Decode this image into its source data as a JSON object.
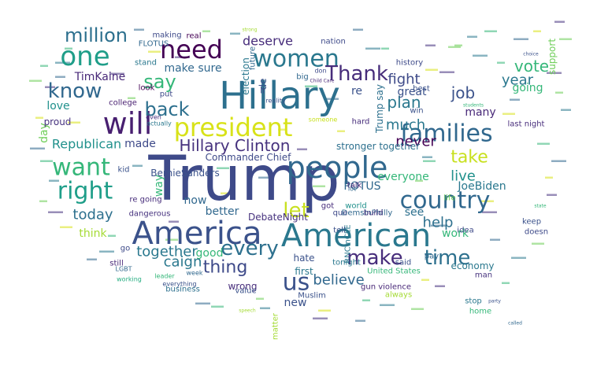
{
  "palette": {
    "dark_purple": "#46327e",
    "indigo": "#443983",
    "blue": "#365c8d",
    "steel_blue": "#31688e",
    "teal_blue": "#277f8e",
    "teal": "#1f9e89",
    "green_teal": "#26ad81",
    "green": "#35b779",
    "light_green": "#6ece58",
    "yellow_green": "#a5db36",
    "yellow": "#d8e219",
    "bright_yellow": "#fde725"
  },
  "words": [
    {
      "text": "Trump",
      "color": "#3e4a89"
    },
    {
      "text": "Hillary",
      "color": "#2d708e"
    },
    {
      "text": "America",
      "color": "#3b528b"
    },
    {
      "text": "American",
      "color": "#2a788e"
    },
    {
      "text": "people",
      "color": "#31688e"
    },
    {
      "text": "president",
      "color": "#d8e219"
    },
    {
      "text": "will",
      "color": "#481f70"
    },
    {
      "text": "need",
      "color": "#440154"
    },
    {
      "text": "one",
      "color": "#1f9e89"
    },
    {
      "text": "women",
      "color": "#2a788e"
    },
    {
      "text": "families",
      "color": "#31688e"
    },
    {
      "text": "country",
      "color": "#31688e"
    },
    {
      "text": "want",
      "color": "#35b779"
    },
    {
      "text": "right",
      "color": "#1f9e89"
    },
    {
      "text": "make",
      "color": "#472d7b"
    },
    {
      "text": "time",
      "color": "#2d708e"
    },
    {
      "text": "us",
      "color": "#3b528b"
    },
    {
      "text": "every",
      "color": "#2d708e"
    },
    {
      "text": "let",
      "color": "#c8e020"
    },
    {
      "text": "take",
      "color": "#c8e020"
    },
    {
      "text": "know",
      "color": "#31688e"
    },
    {
      "text": "Thank",
      "color": "#472d7b"
    },
    {
      "text": "say",
      "color": "#35b779"
    },
    {
      "text": "back",
      "color": "#2d708e"
    },
    {
      "text": "million",
      "color": "#2d708e"
    },
    {
      "text": "Hillary Clinton",
      "color": "#46327e"
    },
    {
      "text": "thing",
      "color": "#3e4a89"
    },
    {
      "text": "believe",
      "color": "#31688e"
    },
    {
      "text": "caign",
      "color": "#2a788e"
    },
    {
      "text": "today",
      "color": "#2d708e"
    },
    {
      "text": "together",
      "color": "#2a788e"
    },
    {
      "text": "Republican",
      "color": "#21918c"
    },
    {
      "text": "plan",
      "color": "#2a788e"
    },
    {
      "text": "job",
      "color": "#3b528b"
    },
    {
      "text": "vote",
      "color": "#35b779"
    },
    {
      "text": "year",
      "color": "#2a788e"
    },
    {
      "text": "fight",
      "color": "#3e4a89"
    },
    {
      "text": "never",
      "color": "#440154"
    },
    {
      "text": "much",
      "color": "#2a788e"
    },
    {
      "text": "help",
      "color": "#2d708e"
    },
    {
      "text": "live",
      "color": "#21918c"
    },
    {
      "text": "JoeBiden",
      "color": "#2a788e"
    },
    {
      "text": "deserve",
      "color": "#472d7b"
    },
    {
      "text": "TimKaine",
      "color": "#482878"
    },
    {
      "text": "make sure",
      "color": "#31688e"
    },
    {
      "text": "love",
      "color": "#21918c"
    },
    {
      "text": "made",
      "color": "#3e4a89"
    },
    {
      "text": "day",
      "color": "#6ece58"
    },
    {
      "text": "now",
      "color": "#31688e"
    },
    {
      "text": "better",
      "color": "#31688e"
    },
    {
      "text": "good",
      "color": "#35b779"
    },
    {
      "text": "think",
      "color": "#a5db36"
    },
    {
      "text": "see",
      "color": "#2d708e"
    },
    {
      "text": "work",
      "color": "#35b779"
    },
    {
      "text": "many",
      "color": "#482878"
    },
    {
      "text": "going",
      "color": "#35b779"
    },
    {
      "text": "everyone",
      "color": "#35b779"
    },
    {
      "text": "great",
      "color": "#3b528b"
    },
    {
      "text": "way",
      "color": "#35b779"
    },
    {
      "text": "re",
      "color": "#3b528b"
    },
    {
      "text": "POTUS",
      "color": "#31688e"
    },
    {
      "text": "BernieSanders",
      "color": "#3b528b"
    },
    {
      "text": "Commander Chief",
      "color": "#3e4a89"
    },
    {
      "text": "DebateNight",
      "color": "#46327e"
    },
    {
      "text": "proud",
      "color": "#46327e"
    },
    {
      "text": "hate",
      "color": "#3b528b"
    },
    {
      "text": "United States",
      "color": "#35b779"
    },
    {
      "text": "economy",
      "color": "#2a788e"
    },
    {
      "text": "first",
      "color": "#2a788e"
    },
    {
      "text": "new",
      "color": "#3b528b"
    },
    {
      "text": "wrong",
      "color": "#472d7b"
    },
    {
      "text": "got",
      "color": "#472d7b"
    },
    {
      "text": "support",
      "color": "#6ece58"
    },
    {
      "text": "history",
      "color": "#3e4a89"
    },
    {
      "text": "best",
      "color": "#3b528b"
    },
    {
      "text": "last night",
      "color": "#472d7b"
    },
    {
      "text": "stronger together",
      "color": "#2d708e"
    },
    {
      "text": "Trump say",
      "color": "#2d708e"
    },
    {
      "text": "election",
      "color": "#2a788e"
    },
    {
      "text": "de",
      "color": "#3b528b"
    },
    {
      "text": "real",
      "color": "#440154"
    },
    {
      "text": "making",
      "color": "#3e4a89"
    },
    {
      "text": "FLOTUS",
      "color": "#31688e"
    },
    {
      "text": "stand",
      "color": "#2a788e"
    },
    {
      "text": "look",
      "color": "#440154"
    },
    {
      "text": "put",
      "color": "#3e4a89"
    },
    {
      "text": "college",
      "color": "#481f70"
    },
    {
      "text": "actually",
      "color": "#2a788e"
    },
    {
      "text": "even",
      "color": "#46327e"
    },
    {
      "text": "kid",
      "color": "#3b528b"
    },
    {
      "text": "dangerous",
      "color": "#46327e"
    },
    {
      "text": "re going",
      "color": "#472d7b"
    },
    {
      "text": "go",
      "color": "#3e4a89"
    },
    {
      "text": "business",
      "color": "#2d708e"
    },
    {
      "text": "leader",
      "color": "#35b779"
    },
    {
      "text": "still",
      "color": "#482878"
    },
    {
      "text": "LGBT",
      "color": "#31688e"
    },
    {
      "text": "working",
      "color": "#26ad81"
    },
    {
      "text": "Muslim",
      "color": "#3b528b"
    },
    {
      "text": "gun violence",
      "color": "#482878"
    },
    {
      "text": "said",
      "color": "#3b528b"
    },
    {
      "text": "always",
      "color": "#a5db36"
    },
    {
      "text": "stop",
      "color": "#2a788e"
    },
    {
      "text": "home",
      "color": "#35b779"
    },
    {
      "text": "man",
      "color": "#46327e"
    },
    {
      "text": "idea",
      "color": "#3e4a89"
    },
    {
      "text": "tonight",
      "color": "#2a788e"
    },
    {
      "text": "DemsInPhilly",
      "color": "#31688e"
    },
    {
      "text": "build",
      "color": "#46327e"
    },
    {
      "text": "world",
      "color": "#21918c"
    },
    {
      "text": "talk",
      "color": "#482878"
    },
    {
      "text": "RNCinCLE",
      "color": "#2a788e"
    },
    {
      "text": "value",
      "color": "#3b528b"
    },
    {
      "text": "week",
      "color": "#31688e"
    },
    {
      "text": "que",
      "color": "#3e4a89"
    },
    {
      "text": "lot",
      "color": "#31688e"
    },
    {
      "text": "win",
      "color": "#3b528b"
    },
    {
      "text": "life",
      "color": "#6ece58"
    },
    {
      "text": "tell",
      "color": "#3b528b"
    },
    {
      "text": "keep",
      "color": "#3b528b"
    },
    {
      "text": "doesn",
      "color": "#3e4a89"
    },
    {
      "text": "hard",
      "color": "#472d7b"
    },
    {
      "text": "pay",
      "color": "#31688e"
    },
    {
      "text": "matter",
      "color": "#a5db36"
    },
    {
      "text": "ll",
      "color": "#3e4a89"
    },
    {
      "text": "big",
      "color": "#31688e"
    },
    {
      "text": "future",
      "color": "#31688e"
    },
    {
      "text": "nation",
      "color": "#3e4a89"
    },
    {
      "text": "don",
      "color": "#3e4a89"
    },
    {
      "text": "reality",
      "color": "#3b528b"
    },
    {
      "text": "someone",
      "color": "#c8e020"
    },
    {
      "text": "everything",
      "color": "#3b528b"
    },
    {
      "text": "strong",
      "color": "#a5db36"
    },
    {
      "text": "party",
      "color": "#3b528b"
    },
    {
      "text": "choice",
      "color": "#3b528b"
    },
    {
      "text": "state",
      "color": "#35b779"
    },
    {
      "text": "called",
      "color": "#31688e"
    },
    {
      "text": "speech",
      "color": "#a5db36"
    },
    {
      "text": "Child Care",
      "color": "#482878"
    },
    {
      "text": "students",
      "color": "#35b779"
    }
  ]
}
